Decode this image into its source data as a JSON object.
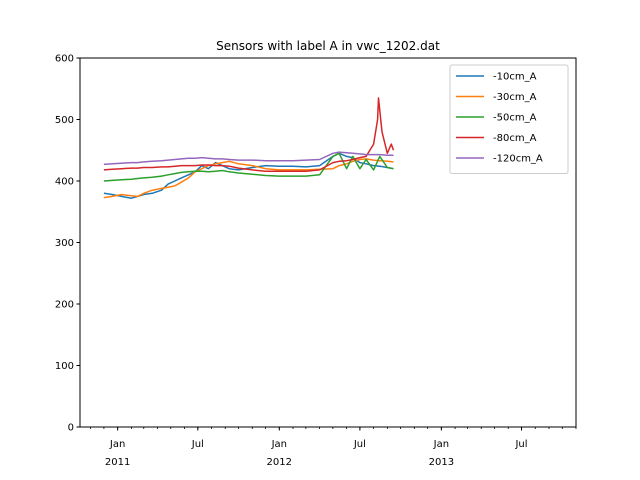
{
  "chart_data": {
    "type": "line",
    "title": "Sensors with label A in vwc_1202.dat",
    "xlabel": "",
    "ylabel": "",
    "x_axis": {
      "type": "date",
      "range": [
        "2010-10-08",
        "2013-11-01"
      ],
      "major_ticks": [
        {
          "date": "2011-01-01",
          "label": "Jan",
          "year_label": "2011"
        },
        {
          "date": "2011-07-01",
          "label": "Jul",
          "year_label": ""
        },
        {
          "date": "2012-01-01",
          "label": "Jan",
          "year_label": "2012"
        },
        {
          "date": "2012-07-01",
          "label": "Jul",
          "year_label": ""
        },
        {
          "date": "2013-01-01",
          "label": "Jan",
          "year_label": "2013"
        },
        {
          "date": "2013-07-01",
          "label": "Jul",
          "year_label": ""
        }
      ],
      "minor_ticks": "monthly"
    },
    "ylim": [
      0,
      600
    ],
    "yticks": [
      0,
      100,
      200,
      300,
      400,
      500,
      600
    ],
    "grid": false,
    "legend_position": "top-right",
    "series": [
      {
        "name": "-10cm_A",
        "color": "#1f77b4",
        "x": [
          "2010-12-01",
          "2010-12-20",
          "2011-01-10",
          "2011-02-01",
          "2011-02-15",
          "2011-03-01",
          "2011-03-20",
          "2011-04-10",
          "2011-04-25",
          "2011-05-10",
          "2011-05-25",
          "2011-06-10",
          "2011-06-25",
          "2011-07-10",
          "2011-07-25",
          "2011-08-10",
          "2011-08-25",
          "2011-09-10",
          "2011-10-01",
          "2011-11-01",
          "2011-12-01",
          "2012-01-01",
          "2012-02-01",
          "2012-03-01",
          "2012-04-01",
          "2012-05-01",
          "2012-05-15",
          "2012-06-01",
          "2012-06-15",
          "2012-07-01",
          "2012-07-15",
          "2012-08-01",
          "2012-08-15",
          "2012-09-01",
          "2012-09-15"
        ],
        "y": [
          380,
          378,
          375,
          372,
          375,
          378,
          380,
          385,
          395,
          400,
          405,
          410,
          415,
          425,
          420,
          430,
          425,
          420,
          418,
          422,
          425,
          424,
          424,
          423,
          425,
          440,
          445,
          440,
          438,
          430,
          428,
          425,
          424,
          422,
          420
        ]
      },
      {
        "name": "-30cm_A",
        "color": "#ff7f0e",
        "x": [
          "2010-12-01",
          "2010-12-20",
          "2011-01-10",
          "2011-02-01",
          "2011-02-15",
          "2011-03-01",
          "2011-03-20",
          "2011-04-10",
          "2011-04-25",
          "2011-05-10",
          "2011-05-25",
          "2011-06-10",
          "2011-06-25",
          "2011-07-10",
          "2011-07-25",
          "2011-08-10",
          "2011-08-25",
          "2011-09-10",
          "2011-10-01",
          "2011-11-01",
          "2011-12-01",
          "2012-01-01",
          "2012-02-01",
          "2012-03-01",
          "2012-04-01",
          "2012-05-01",
          "2012-05-15",
          "2012-06-01",
          "2012-06-15",
          "2012-07-01",
          "2012-07-15",
          "2012-08-01",
          "2012-08-15",
          "2012-09-01",
          "2012-09-15"
        ],
        "y": [
          373,
          375,
          378,
          376,
          375,
          380,
          385,
          388,
          390,
          392,
          398,
          405,
          415,
          420,
          425,
          428,
          430,
          432,
          428,
          425,
          420,
          418,
          418,
          418,
          419,
          420,
          425,
          428,
          432,
          435,
          436,
          434,
          433,
          432,
          431
        ]
      },
      {
        "name": "-50cm_A",
        "color": "#2ca02c",
        "x": [
          "2010-12-01",
          "2010-12-20",
          "2011-01-10",
          "2011-02-01",
          "2011-02-15",
          "2011-03-01",
          "2011-03-20",
          "2011-04-10",
          "2011-04-25",
          "2011-05-10",
          "2011-05-25",
          "2011-06-10",
          "2011-06-25",
          "2011-07-10",
          "2011-07-25",
          "2011-08-10",
          "2011-08-25",
          "2011-09-10",
          "2011-10-01",
          "2011-11-01",
          "2011-12-01",
          "2012-01-01",
          "2012-02-01",
          "2012-03-01",
          "2012-04-01",
          "2012-05-01",
          "2012-05-15",
          "2012-06-01",
          "2012-06-15",
          "2012-07-01",
          "2012-07-15",
          "2012-08-01",
          "2012-08-15",
          "2012-09-01",
          "2012-09-15"
        ],
        "y": [
          400,
          401,
          402,
          403,
          404,
          405,
          406,
          408,
          410,
          412,
          414,
          415,
          416,
          416,
          415,
          416,
          417,
          415,
          413,
          411,
          409,
          408,
          408,
          408,
          410,
          440,
          445,
          420,
          440,
          420,
          435,
          418,
          440,
          422,
          420
        ]
      },
      {
        "name": "-80cm_A",
        "color": "#d62728",
        "x": [
          "2010-12-01",
          "2010-12-20",
          "2011-01-10",
          "2011-02-01",
          "2011-02-15",
          "2011-03-01",
          "2011-03-20",
          "2011-04-10",
          "2011-04-25",
          "2011-05-10",
          "2011-05-25",
          "2011-06-10",
          "2011-06-25",
          "2011-07-10",
          "2011-07-25",
          "2011-08-10",
          "2011-08-25",
          "2011-09-10",
          "2011-10-01",
          "2011-11-01",
          "2011-12-01",
          "2012-01-01",
          "2012-02-01",
          "2012-03-01",
          "2012-04-01",
          "2012-05-01",
          "2012-05-15",
          "2012-06-01",
          "2012-06-15",
          "2012-07-01",
          "2012-07-15",
          "2012-08-01",
          "2012-08-10",
          "2012-08-12",
          "2012-08-20",
          "2012-09-01",
          "2012-09-10",
          "2012-09-15"
        ],
        "y": [
          418,
          419,
          420,
          421,
          421,
          422,
          422,
          423,
          423,
          424,
          425,
          425,
          425,
          426,
          426,
          425,
          425,
          424,
          421,
          418,
          416,
          416,
          416,
          416,
          418,
          430,
          432,
          433,
          435,
          438,
          440,
          460,
          500,
          535,
          480,
          445,
          460,
          450
        ]
      },
      {
        "name": "-120cm_A",
        "color": "#9467bd",
        "x": [
          "2010-12-01",
          "2010-12-20",
          "2011-01-10",
          "2011-02-01",
          "2011-02-15",
          "2011-03-01",
          "2011-03-20",
          "2011-04-10",
          "2011-04-25",
          "2011-05-10",
          "2011-05-25",
          "2011-06-10",
          "2011-06-25",
          "2011-07-10",
          "2011-07-25",
          "2011-08-10",
          "2011-08-25",
          "2011-09-10",
          "2011-10-01",
          "2011-11-01",
          "2011-12-01",
          "2012-01-01",
          "2012-02-01",
          "2012-03-01",
          "2012-04-01",
          "2012-05-01",
          "2012-05-15",
          "2012-06-01",
          "2012-06-15",
          "2012-07-01",
          "2012-07-15",
          "2012-08-01",
          "2012-08-15",
          "2012-09-01",
          "2012-09-15"
        ],
        "y": [
          427,
          428,
          429,
          430,
          430,
          431,
          432,
          433,
          434,
          435,
          436,
          437,
          437,
          438,
          437,
          436,
          436,
          435,
          434,
          434,
          433,
          433,
          433,
          434,
          435,
          445,
          447,
          446,
          445,
          444,
          443,
          443,
          443,
          442,
          442
        ]
      }
    ]
  }
}
